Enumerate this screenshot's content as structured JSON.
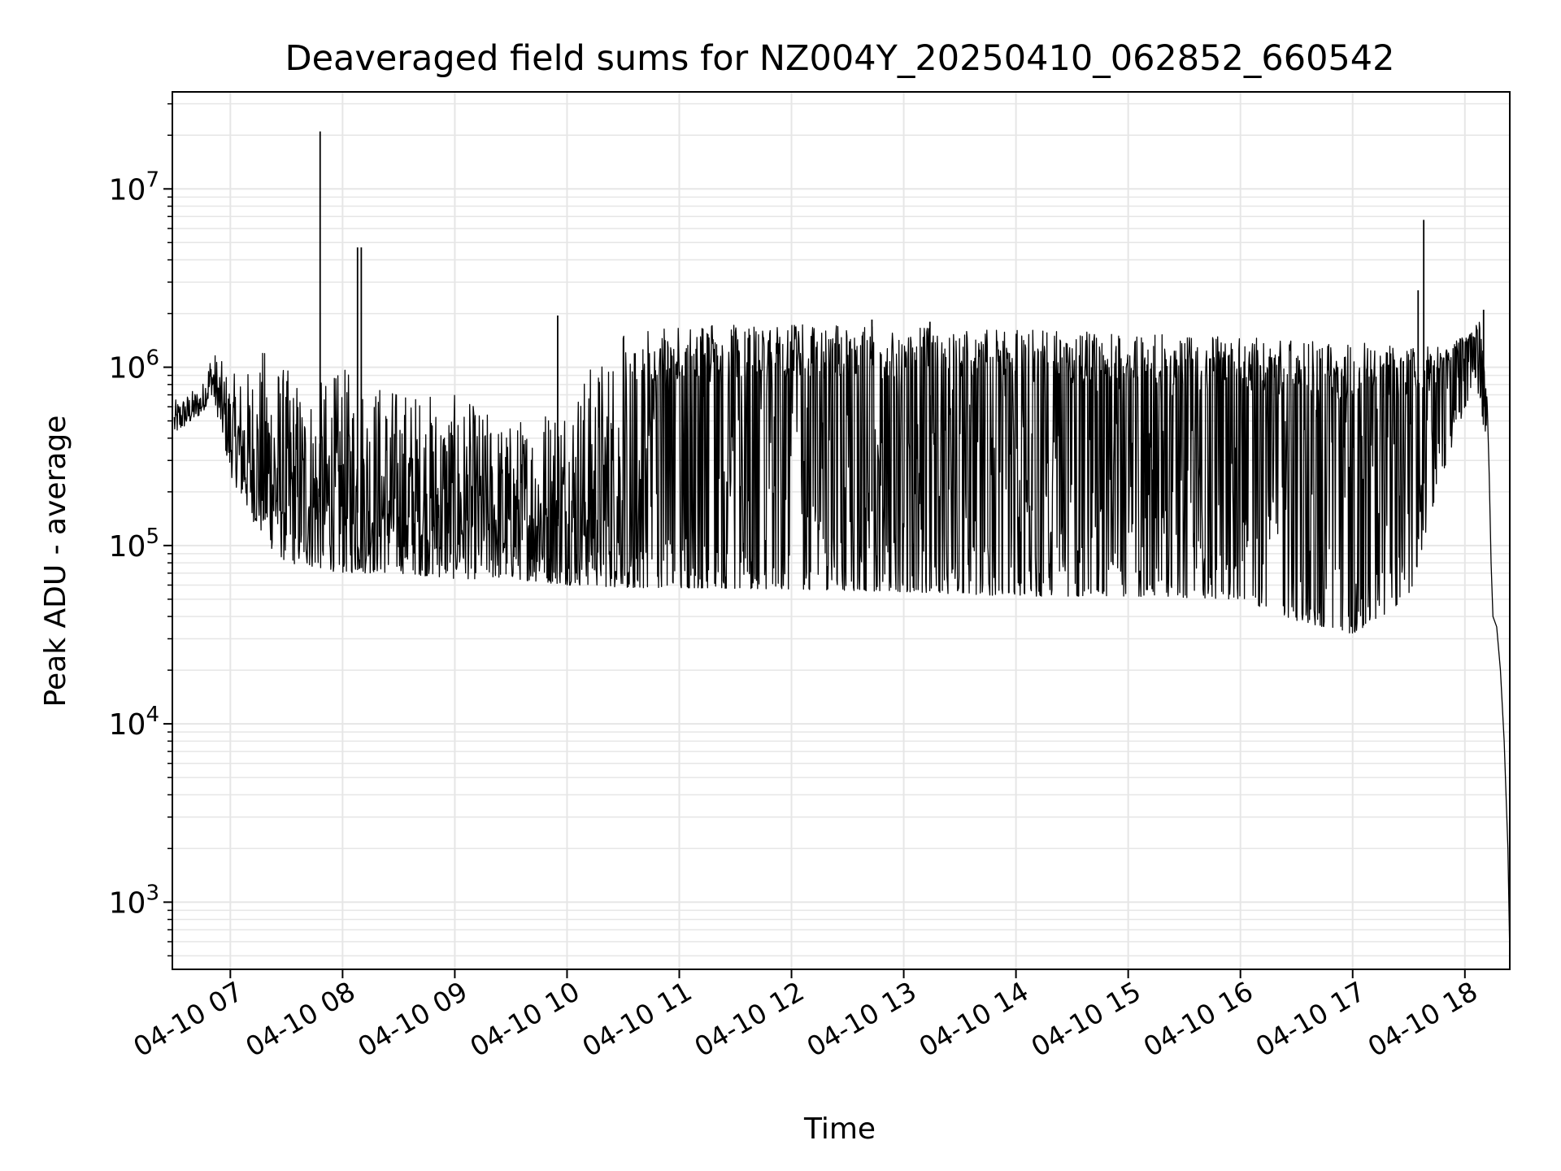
{
  "chart_data": {
    "type": "line",
    "title": "Deaveraged field sums for NZ004Y_20250410_062852_660542",
    "xlabel": "Time",
    "ylabel": "Peak ADU - average",
    "yscale": "log",
    "xlim": [
      "04-10 06:29",
      "04-10 18:24"
    ],
    "ylim": [
      420,
      35000000
    ],
    "grid": true,
    "x_ticks": [
      "04-10 07",
      "04-10 08",
      "04-10 09",
      "04-10 10",
      "04-10 11",
      "04-10 12",
      "04-10 13",
      "04-10 14",
      "04-10 15",
      "04-10 16",
      "04-10 17",
      "04-10 18"
    ],
    "y_ticks": [
      {
        "value": 1000,
        "base": "10",
        "exp": "3"
      },
      {
        "value": 10000,
        "base": "10",
        "exp": "4"
      },
      {
        "value": 100000,
        "base": "10",
        "exp": "5"
      },
      {
        "value": 1000000,
        "base": "10",
        "exp": "6"
      },
      {
        "value": 10000000,
        "base": "10",
        "exp": "7"
      }
    ],
    "line_color": "#000000",
    "grid_color": "#e6e6e6",
    "series": [
      {
        "envelope": [
          {
            "x": "04-10 06:30",
            "low": 420000,
            "high": 650000
          },
          {
            "x": "04-10 06:45",
            "low": 550000,
            "high": 800000
          },
          {
            "x": "04-10 06:50",
            "low": 700000,
            "high": 1300000
          },
          {
            "x": "04-10 06:55",
            "low": 450000,
            "high": 1100000
          },
          {
            "x": "04-10 07:00",
            "low": 250000,
            "high": 900000
          },
          {
            "x": "04-10 07:10",
            "low": 150000,
            "high": 1000000
          },
          {
            "x": "04-10 07:20",
            "low": 100000,
            "high": 1400000
          },
          {
            "x": "04-10 07:30",
            "low": 80000,
            "high": 1000000
          },
          {
            "x": "04-10 07:45",
            "low": 75000,
            "high": 800000
          },
          {
            "x": "04-10 08:00",
            "low": 70000,
            "high": 1000000
          },
          {
            "x": "04-10 08:30",
            "low": 70000,
            "high": 800000
          },
          {
            "x": "04-10 09:00",
            "low": 65000,
            "high": 700000
          },
          {
            "x": "04-10 09:30",
            "low": 65000,
            "high": 500000
          },
          {
            "x": "04-10 10:00",
            "low": 60000,
            "high": 800000
          },
          {
            "x": "04-10 10:30",
            "low": 58000,
            "high": 1600000
          },
          {
            "x": "04-10 11:00",
            "low": 58000,
            "high": 1700000
          },
          {
            "x": "04-10 12:00",
            "low": 57000,
            "high": 1750000
          },
          {
            "x": "04-10 13:00",
            "low": 55000,
            "high": 1700000
          },
          {
            "x": "04-10 14:00",
            "low": 52000,
            "high": 1650000
          },
          {
            "x": "04-10 15:00",
            "low": 52000,
            "high": 1550000
          },
          {
            "x": "04-10 16:00",
            "low": 50000,
            "high": 1500000
          },
          {
            "x": "04-10 16:30",
            "low": 38000,
            "high": 1400000
          },
          {
            "x": "04-10 17:00",
            "low": 32000,
            "high": 1400000
          },
          {
            "x": "04-10 17:30",
            "low": 50000,
            "high": 1300000
          },
          {
            "x": "04-10 17:45",
            "low": 200000,
            "high": 1300000
          },
          {
            "x": "04-10 18:00",
            "low": 600000,
            "high": 1500000
          },
          {
            "x": "04-10 18:08",
            "low": 700000,
            "high": 1800000
          },
          {
            "x": "04-10 18:12",
            "low": 300000,
            "high": 700000
          }
        ],
        "tail": [
          {
            "x": "04-10 18:13",
            "y": 250000
          },
          {
            "x": "04-10 18:14",
            "y": 80000
          },
          {
            "x": "04-10 18:15",
            "y": 40000
          },
          {
            "x": "04-10 18:17",
            "y": 35000
          },
          {
            "x": "04-10 18:19",
            "y": 20000
          },
          {
            "x": "04-10 18:21",
            "y": 8000
          },
          {
            "x": "04-10 18:23",
            "y": 2000
          },
          {
            "x": "04-10 18:24",
            "y": 500
          }
        ],
        "spikes": [
          {
            "x": "04-10 07:48",
            "y": 21000000
          },
          {
            "x": "04-10 08:08",
            "y": 4700000
          },
          {
            "x": "04-10 08:10",
            "y": 4700000
          },
          {
            "x": "04-10 09:55",
            "y": 1950000
          },
          {
            "x": "04-10 17:35",
            "y": 2700000
          },
          {
            "x": "04-10 17:38",
            "y": 6700000
          },
          {
            "x": "04-10 18:10",
            "y": 2100000
          },
          {
            "x": "04-10 12:43",
            "y": 1850000
          },
          {
            "x": "04-10 13:14",
            "y": 1800000
          }
        ]
      }
    ]
  }
}
